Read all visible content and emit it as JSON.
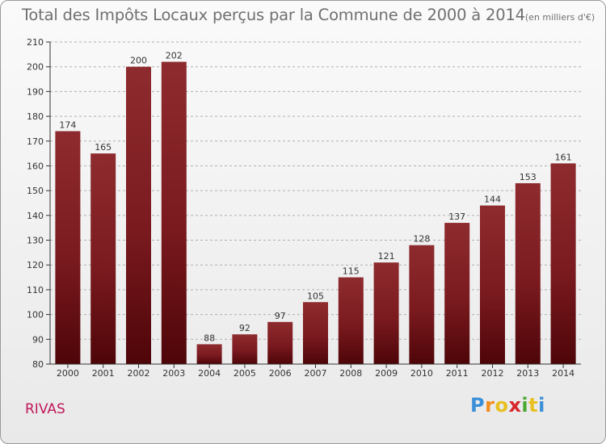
{
  "chart_data": {
    "type": "bar",
    "title": "Total des Impôts Locaux perçus par la Commune de 2000 à 2014",
    "unit_label": "(en milliers d'€)",
    "categories": [
      "2000",
      "2001",
      "2002",
      "2003",
      "2004",
      "2005",
      "2006",
      "2007",
      "2008",
      "2009",
      "2010",
      "2011",
      "2012",
      "2013",
      "2014"
    ],
    "values": [
      174,
      165,
      200,
      202,
      88,
      92,
      97,
      105,
      115,
      121,
      128,
      137,
      144,
      153,
      161
    ],
    "value_labels": [
      "174",
      "165",
      "200",
      "202",
      "88",
      "92",
      "97",
      "105",
      "115",
      "121",
      "128",
      "137",
      "144",
      "153",
      "161"
    ],
    "ylim": [
      80,
      210
    ],
    "yticks": [
      80,
      90,
      100,
      110,
      120,
      130,
      140,
      150,
      160,
      170,
      180,
      190,
      200,
      210
    ],
    "ytick_labels": [
      "80",
      "90",
      "100",
      "110",
      "120",
      "130",
      "140",
      "150",
      "160",
      "170",
      "180",
      "190",
      "200",
      "210"
    ],
    "grid": true,
    "xlabel": "",
    "ylabel": ""
  },
  "commune": "RIVAS",
  "logo": {
    "letters": [
      "P",
      "r",
      "o",
      "x",
      "i",
      "t",
      "i"
    ],
    "colors": [
      "#3a8fd8",
      "#f28c1c",
      "#e8c020",
      "#d8262a",
      "#4aa832",
      "#e8c020",
      "#3a8fd8"
    ]
  },
  "colors": {
    "bar_dark": "#4e0508",
    "bar_mid": "#7a1a1f",
    "bar_light": "#8e2b2e",
    "axis": "#333333",
    "grid": "#b0b0b0",
    "text": "#333333"
  }
}
